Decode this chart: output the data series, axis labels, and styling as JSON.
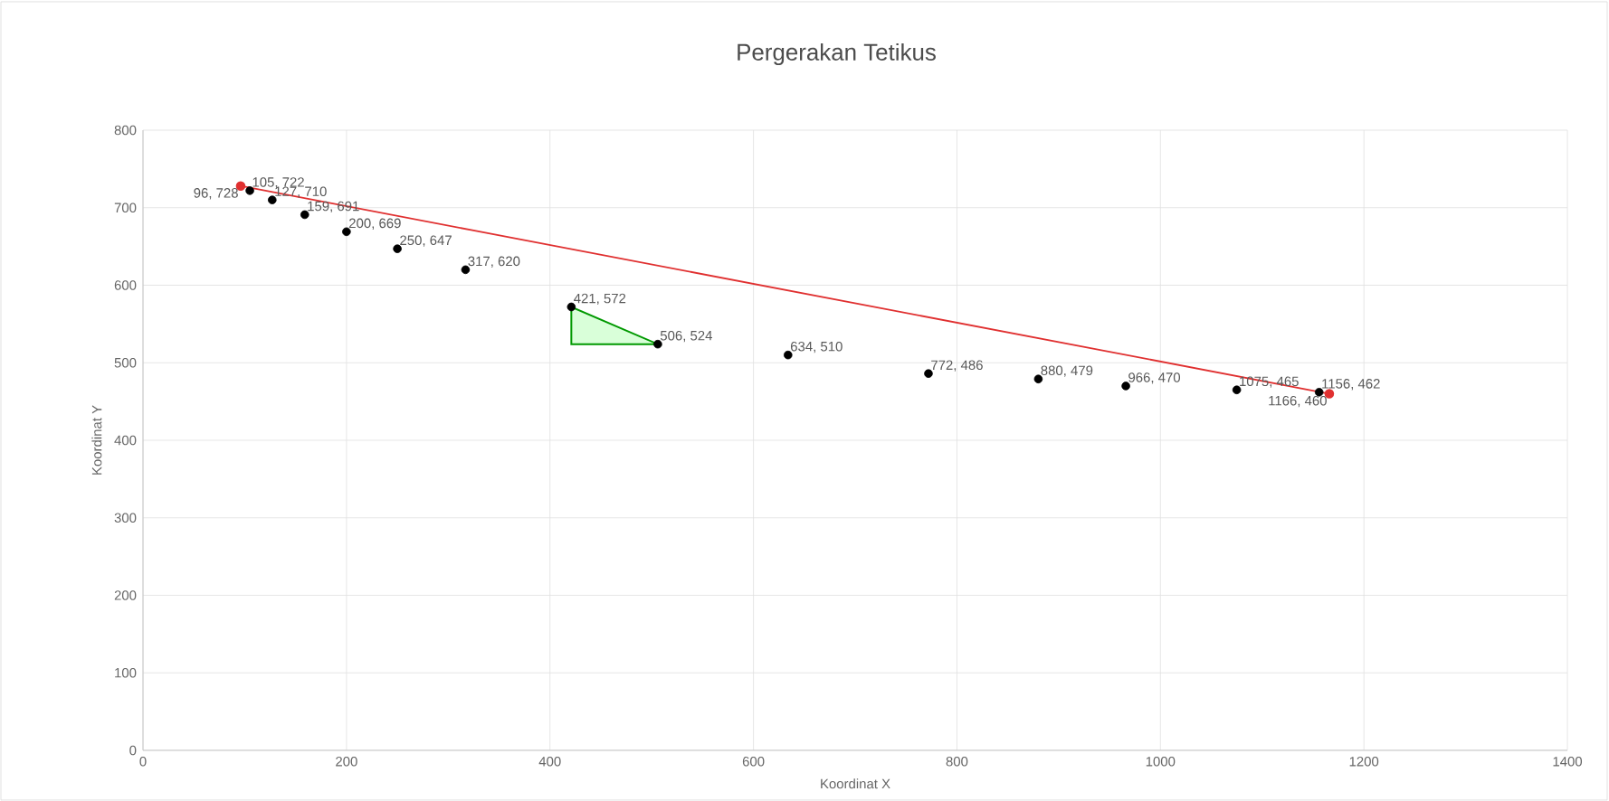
{
  "chart_data": {
    "type": "scatter",
    "title": "Pergerakan Tetikus",
    "xlabel": "Koordinat X",
    "ylabel": "Koordinat Y",
    "xlim": [
      0,
      1400
    ],
    "xticks": [
      0,
      200,
      400,
      600,
      800,
      1000,
      1200,
      1400
    ],
    "ylim": [
      0,
      800
    ],
    "yticks": [
      0,
      100,
      200,
      300,
      400,
      500,
      600,
      700,
      800
    ],
    "grid": true,
    "series": [
      {
        "color": "#000000",
        "marker": "circle",
        "x": [
          105,
          127,
          159,
          200,
          250,
          317,
          421,
          506,
          634,
          772,
          880,
          966,
          1075,
          1156
        ],
        "values": [
          722,
          710,
          691,
          669,
          647,
          620,
          572,
          524,
          510,
          486,
          479,
          470,
          465,
          462
        ],
        "value_labels": [
          "105, 722",
          "127, 710",
          "159, 691",
          "200, 669",
          "250, 647",
          "317, 620",
          "421, 572",
          "506, 524",
          "634, 510",
          "772, 486",
          "880, 479",
          "966, 470",
          "1075, 465",
          "1156, 462"
        ]
      },
      {
        "type": "line",
        "color": "#e03030",
        "marker": "circle",
        "x": [
          96,
          1166
        ],
        "values": [
          728,
          460
        ],
        "value_labels": [
          "96, 728",
          "1166, 460"
        ]
      }
    ]
  }
}
